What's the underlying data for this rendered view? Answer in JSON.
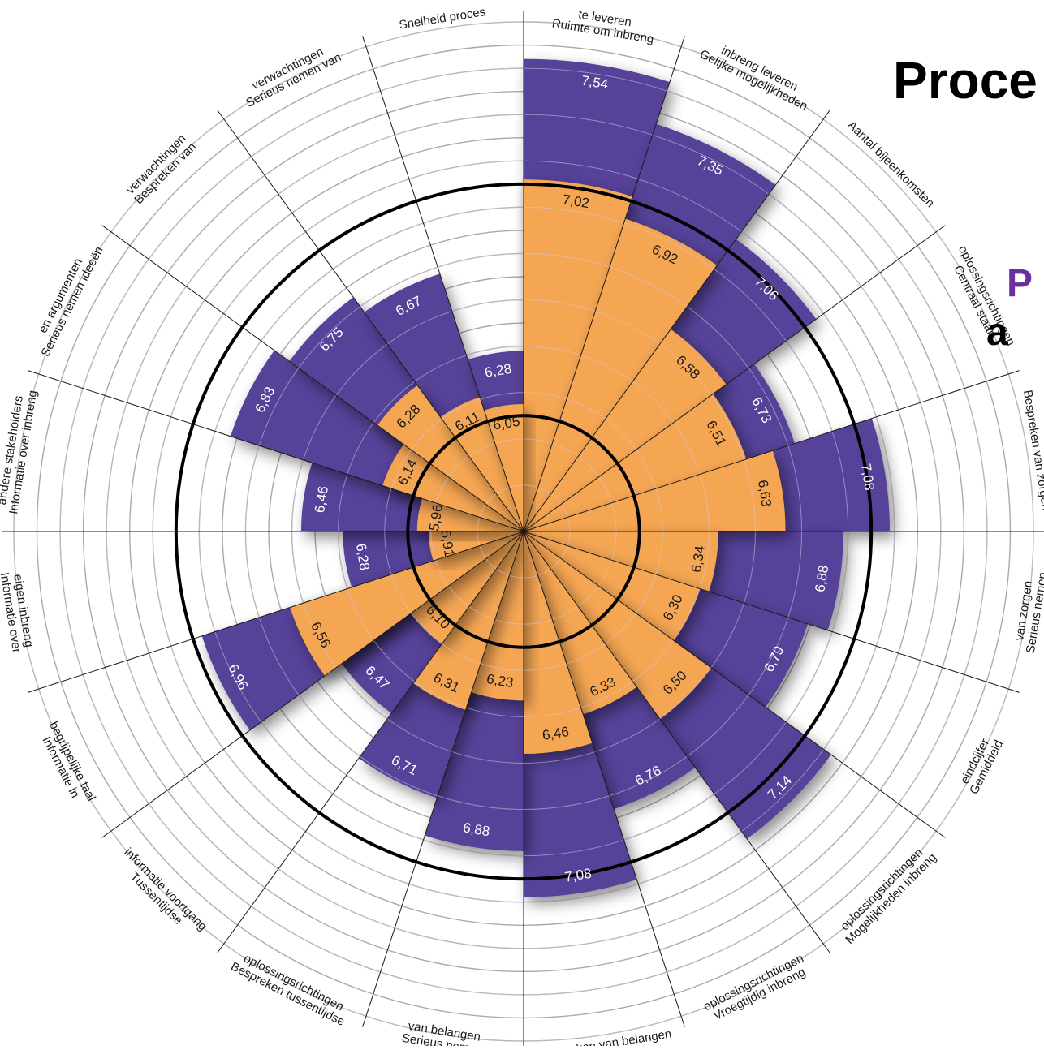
{
  "title": {
    "main": "Proce",
    "sub_line1": "P",
    "sub_line2": "a"
  },
  "chart_data": {
    "type": "polar-bar",
    "title": "",
    "series": [
      {
        "name": "",
        "color": "#574299"
      },
      {
        "name": "",
        "color": "#f5a653"
      }
    ],
    "categories": [
      {
        "label": "Ruimte om inbreng te leveren",
        "label_lines": [
          "Ruimte om inbreng",
          "te leveren"
        ],
        "values": [
          7.54,
          7.02
        ]
      },
      {
        "label": "Gelijke mogelijkheden inbreng leveren",
        "label_lines": [
          "Gelijke mogelijkheden",
          "inbreng leveren"
        ],
        "values": [
          7.35,
          6.92
        ]
      },
      {
        "label": "Aantal bijeenkomsten",
        "label_lines": [
          "Aantal bijeenkomsten"
        ],
        "values": [
          7.06,
          6.58
        ]
      },
      {
        "label": "Centraal staan oplossingsrichtingen",
        "label_lines": [
          "Centraal staan",
          "oplossingsrichtingen"
        ],
        "values": [
          6.73,
          6.51
        ]
      },
      {
        "label": "Bespreken van zorgen",
        "label_lines": [
          "Bespreken van zorgen"
        ],
        "values": [
          7.08,
          6.63
        ]
      },
      {
        "label": "Serieus nemen van zorgen",
        "label_lines": [
          "Serieus nemen",
          "van zorgen"
        ],
        "values": [
          6.88,
          6.34
        ]
      },
      {
        "label": "Gemiddeld eindcijfer",
        "label_lines": [
          "Gemiddeld",
          "eindcijfer"
        ],
        "values": [
          6.79,
          6.3
        ]
      },
      {
        "label": "Mogelijkheden inbreng oplossingsrichtingen",
        "label_lines": [
          "Mogelijkheden inbreng",
          "oplossingsrichtingen"
        ],
        "values": [
          7.14,
          6.5
        ]
      },
      {
        "label": "Vroegtijdig inbreng oplossingsrichtingen",
        "label_lines": [
          "Vroegtijdig inbreng",
          "oplossingsrichtingen"
        ],
        "values": [
          6.76,
          6.33
        ]
      },
      {
        "label": "Bespreken van belangen",
        "label_lines": [
          "Bespreken van belangen"
        ],
        "values": [
          7.08,
          6.46
        ]
      },
      {
        "label": "Serieus nemen van belangen",
        "label_lines": [
          "Serieus nemen",
          "van belangen"
        ],
        "values": [
          6.88,
          6.23
        ]
      },
      {
        "label": "Bespreken tussentijdse oplossingsrichtingen",
        "label_lines": [
          "Bespreken tussentijdse",
          "oplossingsrichtingen"
        ],
        "values": [
          6.71,
          6.31
        ]
      },
      {
        "label": "Tussentijdse informatie voortgang",
        "label_lines": [
          "Tussentijdse",
          "informatie voortgang"
        ],
        "values": [
          6.47,
          6.1
        ]
      },
      {
        "label": "Informatie in begrijpelijke taal",
        "label_lines": [
          "Informatie in",
          "begrijpelijke taal"
        ],
        "values": [
          6.96,
          6.56
        ]
      },
      {
        "label": "Informatie over eigen inbreng",
        "label_lines": [
          "Informatie over",
          "eigen inbreng"
        ],
        "values": [
          6.28,
          5.91
        ]
      },
      {
        "label": "Informatie over inbreng andere stakeholders",
        "label_lines": [
          "Informatie over inbreng",
          "andere stakeholders"
        ],
        "values": [
          6.46,
          5.96
        ]
      },
      {
        "label": "Serieus nemen ideeën en argumenten",
        "label_lines": [
          "Serieus nemen ideeën",
          "en argumenten"
        ],
        "values": [
          6.83,
          6.14
        ]
      },
      {
        "label": "Bespreken van verwachtingen",
        "label_lines": [
          "Bespreken van",
          "verwachtingen"
        ],
        "values": [
          6.75,
          6.28
        ]
      },
      {
        "label": "Serieus nemen van verwachtingen",
        "label_lines": [
          "Serieus nemen van",
          "verwachtingen"
        ],
        "values": [
          6.67,
          6.11
        ]
      },
      {
        "label": "Snelheid proces",
        "label_lines": [
          "Snelheid proces"
        ],
        "values": [
          6.28,
          6.05
        ]
      }
    ],
    "radial_range": [
      5.5,
      7.7
    ],
    "grid_rings": [
      5.6,
      5.7,
      5.8,
      5.9,
      6.0,
      6.1,
      6.2,
      6.3,
      6.4,
      6.5,
      6.6,
      6.7,
      6.8,
      6.9,
      7.0,
      7.1,
      7.2,
      7.3,
      7.4,
      7.5,
      7.6,
      7.7
    ],
    "reference_circles": [
      6.0,
      7.0
    ],
    "colors": {
      "primary": "#574299",
      "secondary": "#f5a653",
      "grid": "#a9a9a9",
      "reference": "#000000"
    }
  }
}
